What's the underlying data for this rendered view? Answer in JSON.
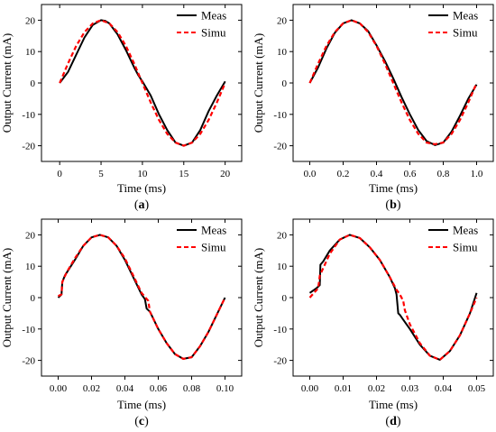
{
  "chart_data": [
    {
      "type": "line",
      "panel": "(a)",
      "panel_letter": "a",
      "xlabel": "Time (ms)",
      "ylabel": "Output Current (mA)",
      "xlim": [
        -2.2,
        22
      ],
      "ylim": [
        -25,
        25
      ],
      "xticks": [
        0,
        5,
        10,
        15,
        20
      ],
      "xtick_labels": [
        "0",
        "5",
        "10",
        "15",
        "20"
      ],
      "yticks": [
        -20,
        -10,
        0,
        10,
        20
      ],
      "ytick_labels": [
        "-20",
        "-10",
        "0",
        "10",
        "20"
      ],
      "legend": "top-right",
      "series": [
        {
          "name": "Meas",
          "color": "#000000",
          "style": "solid",
          "x": [
            0,
            1,
            2,
            3,
            4,
            5,
            5.5,
            6,
            7,
            8,
            9,
            9.5,
            10,
            11,
            12,
            13,
            14,
            15,
            16,
            17,
            18,
            19,
            20
          ],
          "y": [
            0,
            3.5,
            9,
            14.5,
            18.5,
            20,
            19.8,
            19,
            15.5,
            10.5,
            5,
            2.5,
            0.5,
            -4,
            -10,
            -15,
            -19,
            -20,
            -19,
            -15,
            -9,
            -4,
            0.5
          ]
        },
        {
          "name": "Simu",
          "color": "#ff0000",
          "style": "dashed",
          "x": [
            0,
            1,
            2,
            3,
            4,
            5,
            6,
            7,
            8,
            9,
            10,
            11,
            12,
            13,
            14,
            15,
            16,
            17,
            18,
            19,
            20
          ],
          "y": [
            0,
            6.2,
            11.8,
            16.2,
            19,
            20,
            19,
            16.2,
            11.8,
            6.2,
            0,
            -6.2,
            -11.8,
            -16.2,
            -19,
            -20,
            -19,
            -16.2,
            -11.8,
            -6.2,
            0
          ]
        }
      ]
    },
    {
      "type": "line",
      "panel": "(b)",
      "panel_letter": "b",
      "xlabel": "Time (ms)",
      "ylabel": "Output Current (mA)",
      "xlim": [
        -0.1,
        1.1
      ],
      "ylim": [
        -25,
        25
      ],
      "xticks": [
        0,
        0.2,
        0.4,
        0.6,
        0.8,
        1.0
      ],
      "xtick_labels": [
        "0.0",
        "0.2",
        "0.4",
        "0.6",
        "0.8",
        "1.0"
      ],
      "yticks": [
        -20,
        -10,
        0,
        10,
        20
      ],
      "ytick_labels": [
        "-20",
        "-10",
        "0",
        "10",
        "20"
      ],
      "legend": "top-right",
      "series": [
        {
          "name": "Meas",
          "color": "#000000",
          "style": "solid",
          "x": [
            0,
            0.05,
            0.1,
            0.15,
            0.2,
            0.25,
            0.3,
            0.35,
            0.4,
            0.45,
            0.5,
            0.55,
            0.6,
            0.65,
            0.7,
            0.75,
            0.8,
            0.85,
            0.9,
            0.95,
            1.0
          ],
          "y": [
            0,
            5,
            11,
            16,
            19,
            20,
            19,
            16.5,
            12,
            7,
            1.5,
            -4.5,
            -10,
            -15,
            -18.5,
            -19.8,
            -19,
            -15.5,
            -10.5,
            -5,
            -0.5
          ]
        },
        {
          "name": "Simu",
          "color": "#ff0000",
          "style": "dashed",
          "x": [
            0,
            0.05,
            0.1,
            0.15,
            0.2,
            0.25,
            0.3,
            0.35,
            0.4,
            0.45,
            0.5,
            0.55,
            0.6,
            0.65,
            0.7,
            0.75,
            0.8,
            0.85,
            0.9,
            0.95,
            1.0
          ],
          "y": [
            0,
            6.2,
            11.8,
            16.2,
            19,
            20,
            19,
            16.2,
            11.8,
            6.2,
            0,
            -6.2,
            -11.8,
            -16.2,
            -19,
            -19.5,
            -19,
            -16.2,
            -11.8,
            -6.2,
            0
          ]
        }
      ]
    },
    {
      "type": "line",
      "panel": "(c)",
      "panel_letter": "c",
      "xlabel": "Time (ms)",
      "ylabel": "Output Current (mA)",
      "xlim": [
        -0.01,
        0.11
      ],
      "ylim": [
        -25,
        25
      ],
      "xticks": [
        0,
        0.02,
        0.04,
        0.06,
        0.08,
        0.1
      ],
      "xtick_labels": [
        "0.00",
        "0.02",
        "0.04",
        "0.06",
        "0.08",
        "0.10"
      ],
      "yticks": [
        -20,
        -10,
        0,
        10,
        20
      ],
      "ytick_labels": [
        "-20",
        "-10",
        "0",
        "10",
        "20"
      ],
      "legend": "top-right",
      "series": [
        {
          "name": "Meas",
          "color": "#000000",
          "style": "solid",
          "x": [
            0,
            0.002,
            0.0025,
            0.004,
            0.01,
            0.015,
            0.02,
            0.025,
            0.03,
            0.035,
            0.04,
            0.045,
            0.05,
            0.052,
            0.053,
            0.055,
            0.06,
            0.065,
            0.07,
            0.075,
            0.08,
            0.085,
            0.09,
            0.095,
            0.1
          ],
          "y": [
            0,
            1,
            5,
            7,
            12,
            16.5,
            19.2,
            20,
            19.2,
            16.5,
            12,
            6.5,
            1,
            -0.5,
            -3.5,
            -4.5,
            -10,
            -14.5,
            -18,
            -19.5,
            -19,
            -15.5,
            -11,
            -5.5,
            0
          ]
        },
        {
          "name": "Simu",
          "color": "#ff0000",
          "style": "dashed",
          "x": [
            0,
            0.002,
            0.0025,
            0.005,
            0.01,
            0.015,
            0.02,
            0.025,
            0.03,
            0.035,
            0.04,
            0.045,
            0.05,
            0.054,
            0.055,
            0.06,
            0.065,
            0.07,
            0.075,
            0.08,
            0.085,
            0.09,
            0.095,
            0.1
          ],
          "y": [
            0.5,
            1,
            5,
            8,
            12.5,
            16.5,
            19.2,
            20,
            19.2,
            16.5,
            12.5,
            7,
            1.5,
            -1,
            -4.5,
            -10,
            -14.5,
            -18,
            -19.5,
            -19,
            -15.5,
            -11,
            -5.5,
            0
          ]
        }
      ]
    },
    {
      "type": "line",
      "panel": "(d)",
      "panel_letter": "d",
      "xlabel": "Time (ms)",
      "ylabel": "Output Current (mA)",
      "xlim": [
        -0.005,
        0.055
      ],
      "ylim": [
        -25,
        25
      ],
      "xticks": [
        0,
        0.01,
        0.02,
        0.03,
        0.04,
        0.05
      ],
      "xtick_labels": [
        "0.00",
        "0.01",
        "0.02",
        "0.03",
        "0.04",
        "0.05"
      ],
      "yticks": [
        -20,
        -10,
        0,
        10,
        20
      ],
      "ytick_labels": [
        "-20",
        "-10",
        "0",
        "10",
        "20"
      ],
      "legend": "top-right",
      "series": [
        {
          "name": "Meas",
          "color": "#000000",
          "style": "solid",
          "x": [
            0,
            0.002,
            0.003,
            0.0032,
            0.004,
            0.006,
            0.009,
            0.012,
            0.015,
            0.018,
            0.021,
            0.024,
            0.0255,
            0.026,
            0.0265,
            0.027,
            0.028,
            0.03,
            0.033,
            0.036,
            0.039,
            0.042,
            0.045,
            0.048,
            0.05
          ],
          "y": [
            1.5,
            3,
            4,
            10.5,
            11.5,
            15,
            18.5,
            20,
            19,
            16,
            12,
            6.5,
            3,
            1,
            -5,
            -5.5,
            -7,
            -10,
            -15,
            -18.5,
            -19.8,
            -17,
            -12,
            -5,
            1.5
          ]
        },
        {
          "name": "Simu",
          "color": "#ff0000",
          "style": "dashed",
          "x": [
            0,
            0.0025,
            0.003,
            0.006,
            0.009,
            0.012,
            0.015,
            0.018,
            0.021,
            0.024,
            0.026,
            0.027,
            0.028,
            0.0285,
            0.03,
            0.033,
            0.036,
            0.039,
            0.042,
            0.045,
            0.048,
            0.05
          ],
          "y": [
            0,
            3,
            7,
            14,
            18.5,
            20,
            19,
            16,
            12,
            6.5,
            2.5,
            1,
            -1,
            -4,
            -8.5,
            -14.5,
            -18.5,
            -19.8,
            -17,
            -12,
            -5,
            0
          ]
        }
      ]
    }
  ]
}
